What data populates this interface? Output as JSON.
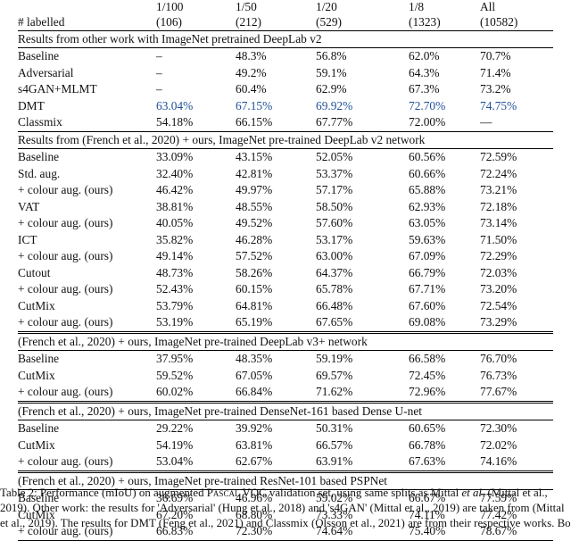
{
  "table": {
    "header": {
      "row_label": "# labelled",
      "columns": [
        {
          "fraction": "1/100",
          "count": "(106)"
        },
        {
          "fraction": "1/50",
          "count": "(212)"
        },
        {
          "fraction": "1/20",
          "count": "(529)"
        },
        {
          "fraction": "1/8",
          "count": "(1323)"
        },
        {
          "fraction": "All",
          "count": "(10582)"
        }
      ]
    },
    "sections": [
      {
        "title": "Results from other work with ImageNet pretrained DeepLab v2",
        "rows": [
          {
            "name": "Baseline",
            "indent": false,
            "values": [
              {
                "v": "–"
              },
              {
                "v": "48.3%"
              },
              {
                "v": "56.8%"
              },
              {
                "v": "62.0%"
              },
              {
                "v": "70.7%"
              }
            ]
          },
          {
            "name": "Adversarial",
            "indent": false,
            "values": [
              {
                "v": "–"
              },
              {
                "v": "49.2%"
              },
              {
                "v": "59.1%"
              },
              {
                "v": "64.3%"
              },
              {
                "v": "71.4%"
              }
            ]
          },
          {
            "name": "s4GAN+MLMT",
            "indent": false,
            "values": [
              {
                "v": "–"
              },
              {
                "v": "60.4%"
              },
              {
                "v": "62.9%"
              },
              {
                "v": "67.3%"
              },
              {
                "v": "73.2%"
              }
            ]
          },
          {
            "name": "DMT",
            "indent": false,
            "values": [
              {
                "v": "63.04%",
                "style": "blue"
              },
              {
                "v": "67.15%",
                "style": "blue"
              },
              {
                "v": "69.92%",
                "style": "blue"
              },
              {
                "v": "72.70%",
                "style": "blue"
              },
              {
                "v": "74.75%",
                "style": "blue"
              }
            ]
          },
          {
            "name": "Classmix",
            "indent": false,
            "values": [
              {
                "v": "54.18%"
              },
              {
                "v": "66.15%"
              },
              {
                "v": "67.77%"
              },
              {
                "v": "72.00%"
              },
              {
                "v": "—"
              }
            ]
          }
        ]
      },
      {
        "title": "Results from (French et al., 2020) + ours, ImageNet pre-trained DeepLab v2 network",
        "rows": [
          {
            "name": "Baseline",
            "indent": false,
            "values": [
              {
                "v": "33.09%"
              },
              {
                "v": "43.15%"
              },
              {
                "v": "52.05%"
              },
              {
                "v": "60.56%"
              },
              {
                "v": "72.59%"
              }
            ]
          },
          {
            "name": "Std. aug.",
            "indent": false,
            "values": [
              {
                "v": "32.40%"
              },
              {
                "v": "42.81%"
              },
              {
                "v": "53.37%"
              },
              {
                "v": "60.66%"
              },
              {
                "v": "72.24%"
              }
            ]
          },
          {
            "name": "+ colour aug. (ours)",
            "indent": true,
            "values": [
              {
                "v": "46.42%"
              },
              {
                "v": "49.97%"
              },
              {
                "v": "57.17%"
              },
              {
                "v": "65.88%"
              },
              {
                "v": "73.21%"
              }
            ]
          },
          {
            "name": "VAT",
            "indent": false,
            "values": [
              {
                "v": "38.81%"
              },
              {
                "v": "48.55%"
              },
              {
                "v": "58.50%"
              },
              {
                "v": "62.93%"
              },
              {
                "v": "72.18%"
              }
            ]
          },
          {
            "name": "+ colour aug. (ours)",
            "indent": true,
            "values": [
              {
                "v": "40.05%"
              },
              {
                "v": "49.52%"
              },
              {
                "v": "57.60%"
              },
              {
                "v": "63.05%"
              },
              {
                "v": "73.14%"
              }
            ]
          },
          {
            "name": "ICT",
            "indent": false,
            "values": [
              {
                "v": "35.82%"
              },
              {
                "v": "46.28%"
              },
              {
                "v": "53.17%"
              },
              {
                "v": "59.63%"
              },
              {
                "v": "71.50%"
              }
            ]
          },
          {
            "name": "+ colour aug. (ours)",
            "indent": true,
            "values": [
              {
                "v": "49.14%"
              },
              {
                "v": "57.52%"
              },
              {
                "v": "63.00%"
              },
              {
                "v": "67.09%"
              },
              {
                "v": "72.29%"
              }
            ]
          },
          {
            "name": "Cutout",
            "indent": false,
            "values": [
              {
                "v": "48.73%"
              },
              {
                "v": "58.26%"
              },
              {
                "v": "64.37%"
              },
              {
                "v": "66.79%"
              },
              {
                "v": "72.03%"
              }
            ]
          },
          {
            "name": "+ colour aug. (ours)",
            "indent": true,
            "values": [
              {
                "v": "52.43%"
              },
              {
                "v": "60.15%"
              },
              {
                "v": "65.78%"
              },
              {
                "v": "67.71%"
              },
              {
                "v": "73.20%"
              }
            ]
          },
          {
            "name": "CutMix",
            "indent": false,
            "values": [
              {
                "v": "53.79%",
                "style": "bold"
              },
              {
                "v": "64.81%"
              },
              {
                "v": "66.48%"
              },
              {
                "v": "67.60%"
              },
              {
                "v": "72.54%"
              }
            ]
          },
          {
            "name": "+ colour aug. (ours)",
            "indent": true,
            "values": [
              {
                "v": "53.19%"
              },
              {
                "v": "65.19%",
                "style": "bold"
              },
              {
                "v": "67.65%",
                "style": "bold"
              },
              {
                "v": "69.08%",
                "style": "bold"
              },
              {
                "v": "73.29%",
                "style": "bold"
              }
            ]
          }
        ]
      },
      {
        "title": "(French et al., 2020) + ours, ImageNet pre-trained DeepLab v3+ network",
        "rows": [
          {
            "name": "Baseline",
            "indent": false,
            "values": [
              {
                "v": "37.95%"
              },
              {
                "v": "48.35%"
              },
              {
                "v": "59.19%"
              },
              {
                "v": "66.58%"
              },
              {
                "v": "76.70%"
              }
            ]
          },
          {
            "name": "CutMix",
            "indent": false,
            "values": [
              {
                "v": "59.52%"
              },
              {
                "v": "67.05%",
                "style": "bold"
              },
              {
                "v": "69.57%"
              },
              {
                "v": "72.45%"
              },
              {
                "v": "76.73%"
              }
            ]
          },
          {
            "name": "+ colour aug. (ours)",
            "indent": true,
            "values": [
              {
                "v": "60.02%",
                "style": "bold"
              },
              {
                "v": "66.84%"
              },
              {
                "v": "71.62%",
                "style": "bold"
              },
              {
                "v": "72.96%",
                "style": "bold"
              },
              {
                "v": "77.67%",
                "style": "bold"
              }
            ]
          }
        ]
      },
      {
        "title": "(French et al., 2020) + ours, ImageNet pre-trained DenseNet-161 based Dense U-net",
        "rows": [
          {
            "name": "Baseline",
            "indent": false,
            "values": [
              {
                "v": "29.22%"
              },
              {
                "v": "39.92%"
              },
              {
                "v": "50.31%"
              },
              {
                "v": "60.65%"
              },
              {
                "v": "72.30%"
              }
            ]
          },
          {
            "name": "CutMix",
            "indent": false,
            "values": [
              {
                "v": "54.19%",
                "style": "bold"
              },
              {
                "v": "63.81%",
                "style": "bold"
              },
              {
                "v": "66.57%",
                "style": "bold"
              },
              {
                "v": "66.78%"
              },
              {
                "v": "72.02%"
              }
            ]
          },
          {
            "name": "+ colour aug. (ours)",
            "indent": true,
            "values": [
              {
                "v": "53.04%"
              },
              {
                "v": "62.67%"
              },
              {
                "v": "63.91%"
              },
              {
                "v": "67.63%",
                "style": "bold"
              },
              {
                "v": "74.16%",
                "style": "bold"
              }
            ]
          }
        ]
      },
      {
        "title": "(French et al., 2020) + ours, ImageNet pre-trained ResNet-101 based PSPNet",
        "rows": [
          {
            "name": "Baseline",
            "indent": false,
            "values": [
              {
                "v": "36.69%"
              },
              {
                "v": "46.96%"
              },
              {
                "v": "59.02%"
              },
              {
                "v": "66.67%"
              },
              {
                "v": "77.59%"
              }
            ]
          },
          {
            "name": "CutMix",
            "indent": false,
            "values": [
              {
                "v": "67.20%",
                "style": "bold"
              },
              {
                "v": "68.80%"
              },
              {
                "v": "73.33%"
              },
              {
                "v": "74.11%"
              },
              {
                "v": "77.42%"
              }
            ]
          },
          {
            "name": "+ colour aug. (ours)",
            "indent": true,
            "values": [
              {
                "v": "66.83%"
              },
              {
                "v": "72.30%",
                "style": "bold"
              },
              {
                "v": "74.64%",
                "style": "bold"
              },
              {
                "v": "75.40%",
                "style": "bold"
              },
              {
                "v": "78.67%",
                "style": "bold"
              }
            ]
          }
        ]
      }
    ]
  },
  "caption": {
    "line1_pre": "Table 2: Performance (mIoU) on augmented ",
    "line1_sc": "Pascal",
    "line1_mid": " VOC validation set, using same splits as Mittal ",
    "line1_it": "et al",
    "line1_post": ". (Mittal et al.,",
    "line2": "2019). Other work: the results for 'Adversarial' (Hung et al., 2018) and 's4GAN' (Mittal et al., 2019) are taken from (Mittal",
    "line3": "et al., 2019). The results for DMT (Feng et al., 2021) and Classmix (Olsson et al., 2021) are from their respective works. Bold"
  }
}
